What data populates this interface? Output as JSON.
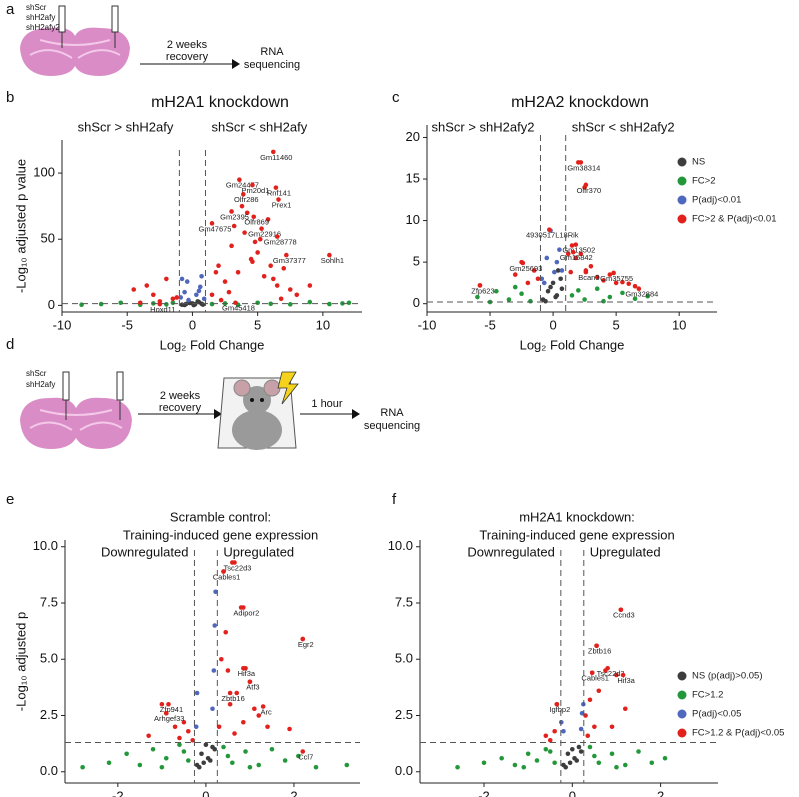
{
  "panel_labels": [
    "a",
    "b",
    "c",
    "d",
    "e",
    "f"
  ],
  "schematic_a": {
    "groups": [
      "shScr",
      "shH2afy",
      "shH2afy2"
    ],
    "step1": [
      "2 weeks",
      "recovery"
    ],
    "end": [
      "RNA",
      "sequencing"
    ]
  },
  "schematic_d": {
    "groups": [
      "shScr",
      "shH2afy"
    ],
    "step1": [
      "2 weeks",
      "recovery"
    ],
    "step2": "1 hour",
    "end": [
      "RNA",
      "sequencing"
    ]
  },
  "chart_data": [
    {
      "type": "scatter",
      "title": "mH2A1 knockdown",
      "left_label": "shScr > shH2afy",
      "right_label": "shScr < shH2afy",
      "xlabel": "Log₂ Fold Change",
      "ylabel": "-Log₁₀ adjusted p value",
      "xlim": [
        -10,
        13
      ],
      "ylim": [
        -5,
        125
      ],
      "xticks": [
        -10,
        -5,
        0,
        5,
        10
      ],
      "yticks": [
        0,
        50,
        100
      ],
      "vlines": [
        -1,
        1
      ],
      "hline": 1.3,
      "series": [
        {
          "color": "#3d3d3d",
          "x": [
            -0.8,
            -0.5,
            -0.3,
            0,
            0.2,
            0.5,
            0.7,
            -0.6,
            0.4,
            0.1,
            -0.2,
            0.8
          ],
          "values": [
            0.5,
            1,
            2,
            1.5,
            0.8,
            2.5,
            1.2,
            0.3,
            3,
            0.2,
            1.8,
            0.6
          ]
        },
        {
          "color": "#23983a",
          "x": [
            -7,
            -5.5,
            -4,
            -3,
            -2,
            -1.5,
            1.5,
            2.5,
            3.5,
            5,
            6,
            7.5,
            9,
            10.5,
            11.5,
            -8.5,
            12
          ],
          "values": [
            1,
            2,
            0.5,
            1.5,
            0.8,
            2,
            1,
            1.5,
            0.5,
            2,
            1.2,
            0.8,
            2.5,
            1,
            1.5,
            0.5,
            2
          ]
        },
        {
          "color": "#4f67bd",
          "x": [
            -0.9,
            -0.6,
            -0.4,
            0.3,
            0.6,
            0.9,
            -0.8,
            0.7,
            0.5,
            -0.3
          ],
          "values": [
            6,
            10,
            18,
            8,
            14,
            5,
            20,
            22,
            11,
            4
          ]
        },
        {
          "color": "#e3211c",
          "x": [
            -4.5,
            -3.5,
            -3,
            -2,
            -1.5,
            -2.5,
            -4,
            1.5,
            2,
            2.5,
            3,
            3.5,
            4,
            4.5,
            5,
            5.5,
            6,
            6.5,
            7,
            7.5,
            8,
            3.2,
            4.2,
            5.2,
            6.2,
            3.8,
            4.8,
            2.8,
            5.8,
            1.8,
            6.8,
            9,
            -1.2,
            2.2,
            4.6
          ],
          "values": [
            12,
            15,
            8,
            20,
            5,
            3,
            2,
            8,
            30,
            18,
            45,
            25,
            55,
            35,
            40,
            22,
            30,
            15,
            28,
            12,
            8,
            60,
            70,
            50,
            20,
            75,
            48,
            10,
            65,
            25,
            5,
            15,
            6,
            4,
            33
          ]
        }
      ],
      "annotations": [
        {
          "text": "Gm11460",
          "x": 6.2,
          "y": 116
        },
        {
          "text": "Gm24477",
          "x": 3.6,
          "y": 95
        },
        {
          "text": "Pm20d1",
          "x": 4.6,
          "y": 91
        },
        {
          "text": "Rnf141",
          "x": 6.4,
          "y": 89
        },
        {
          "text": "Olfr286",
          "x": 3.9,
          "y": 84
        },
        {
          "text": "Prex1",
          "x": 6.6,
          "y": 80
        },
        {
          "text": "Gm2395",
          "x": 3,
          "y": 71
        },
        {
          "text": "Olfr869",
          "x": 4.7,
          "y": 67
        },
        {
          "text": "Gm47675",
          "x": 1.5,
          "y": 62
        },
        {
          "text": "Gm22916",
          "x": 5.3,
          "y": 58
        },
        {
          "text": "Gm28778",
          "x": 6.5,
          "y": 52
        },
        {
          "text": "Gm37377",
          "x": 7.2,
          "y": 38
        },
        {
          "text": "Sohlh1",
          "x": 10.5,
          "y": 38
        },
        {
          "text": "Gm45418",
          "x": 3.3,
          "y": 2
        },
        {
          "text": "Hoxd11",
          "x": -2.5,
          "y": 1
        }
      ]
    },
    {
      "type": "scatter",
      "title": "mH2A2 knockdown",
      "left_label": "shScr > shH2afy2",
      "right_label": "shScr < shH2afy2",
      "xlabel": "Log₂ Fold Change",
      "xlim": [
        -10,
        13
      ],
      "ylim": [
        -1,
        21.5
      ],
      "xticks": [
        -10,
        -5,
        0,
        5,
        10
      ],
      "yticks": [
        0,
        5,
        10,
        15,
        20
      ],
      "vlines": [
        -1,
        1
      ],
      "hline": 0.2,
      "legend": "right",
      "series": [
        {
          "name": "NS",
          "color": "#3d3d3d",
          "x": [
            -0.8,
            -0.4,
            0,
            0.3,
            0.6,
            -0.6,
            0.2,
            -0.2,
            0.7,
            0.4
          ],
          "values": [
            0.5,
            1.5,
            2.5,
            1,
            3,
            0.3,
            0.8,
            2,
            1.8,
            4
          ]
        },
        {
          "name": "FC>2",
          "color": "#23983a",
          "x": [
            -6,
            -4.5,
            -3.5,
            -2.5,
            -1.8,
            1.5,
            2.5,
            3.5,
            4.5,
            5.5,
            6.5,
            7.5,
            -3,
            2,
            4,
            -5
          ],
          "values": [
            0.8,
            1.5,
            0.5,
            1.2,
            0.3,
            1,
            0.5,
            1.8,
            0.8,
            1.3,
            0.6,
            0.9,
            2,
            1.6,
            0.3,
            0.2
          ]
        },
        {
          "name": "P(adj)<0.01",
          "color": "#4f67bd",
          "x": [
            -0.9,
            -0.5,
            -0.2,
            0.3,
            0.7,
            0.5,
            -0.7,
            0.1
          ],
          "values": [
            3,
            5.5,
            8.8,
            5,
            4,
            6.5,
            2.5,
            3.8
          ]
        },
        {
          "name": "FC>2 & P(adj)<0.01",
          "color": "#e3211c",
          "x": [
            -5.8,
            -3,
            -2.5,
            -2,
            -1.5,
            -1.2,
            1.2,
            1.5,
            1.8,
            2,
            2.5,
            3,
            3.5,
            4,
            4.5,
            5,
            5.5,
            6,
            6.5,
            2.2,
            2.6,
            1.4
          ],
          "values": [
            2.2,
            3.5,
            5,
            2.5,
            4,
            3,
            6,
            7,
            5.5,
            17,
            14,
            4.5,
            3.2,
            2.8,
            3.5,
            2.5,
            2.6,
            2.4,
            2.1,
            6,
            4,
            3.8
          ]
        }
      ],
      "annotations": [
        {
          "text": "Gm38314",
          "x": 2.2,
          "y": 17
        },
        {
          "text": "Olfr370",
          "x": 2.6,
          "y": 14.3
        },
        {
          "text": "4930517L18Rik",
          "x": -0.3,
          "y": 8.9
        },
        {
          "text": "Gm13502",
          "x": 1.8,
          "y": 7.1
        },
        {
          "text": "Gm15842",
          "x": 1.6,
          "y": 6.2
        },
        {
          "text": "Gm25693",
          "x": -2.4,
          "y": 4.9
        },
        {
          "text": "Bcan3",
          "x": 2.6,
          "y": 3.8
        },
        {
          "text": "Gm35755",
          "x": 4.8,
          "y": 3.7
        },
        {
          "text": "Zfp623",
          "x": -5.8,
          "y": 2.2
        },
        {
          "text": "Gm32884",
          "x": 6.8,
          "y": 1.8
        }
      ]
    },
    {
      "type": "scatter",
      "title": "Scramble control:",
      "subtitle": "Training-induced gene expression",
      "left_label": "Downregulated",
      "right_label": "Upregulated",
      "xlabel": "Log₂ Fold Change",
      "ylabel": "-Log₁₀ adjusted p",
      "xlim": [
        -3.2,
        3.5
      ],
      "ylim": [
        -0.5,
        10.3
      ],
      "xticks": [
        -2,
        0,
        2
      ],
      "yticks": [
        {
          "value": 0,
          "label": "0.0"
        },
        2.5,
        {
          "value": 5,
          "label": "5.0"
        },
        7.5,
        {
          "value": 10,
          "label": "10.0"
        }
      ],
      "vlines": [
        -0.26,
        0.26
      ],
      "hline": 1.3,
      "series": [
        {
          "color": "#3d3d3d",
          "x": [
            -0.2,
            -0.1,
            0,
            0.1,
            0.2,
            -0.15,
            0.05,
            0.15,
            -0.05
          ],
          "values": [
            0.3,
            0.8,
            1.2,
            0.5,
            1,
            0.2,
            0.6,
            1.1,
            0.4
          ]
        },
        {
          "color": "#23983a",
          "x": [
            -2.8,
            -2.2,
            -1.8,
            -1.5,
            -1.2,
            -0.9,
            -0.6,
            -0.4,
            0.4,
            0.6,
            0.9,
            1.2,
            1.5,
            1.8,
            2.1,
            2.5,
            3.2,
            -1.0,
            1.0,
            -0.5,
            0.5
          ],
          "values": [
            0.2,
            0.4,
            0.8,
            0.3,
            1.0,
            0.6,
            1.2,
            0.5,
            1.1,
            0.4,
            0.9,
            0.3,
            1.0,
            0.5,
            0.7,
            0.2,
            0.3,
            0.2,
            0.2,
            0.9,
            0.7
          ]
        },
        {
          "color": "#4f67bd",
          "x": [
            -0.22,
            -0.2,
            0.18,
            0.2,
            0.22,
            0.15
          ],
          "values": [
            2.0,
            3.5,
            4.5,
            6.5,
            8.0,
            2.8
          ]
        },
        {
          "color": "#e3211c",
          "x": [
            -1.3,
            -1.0,
            -0.9,
            -0.7,
            -0.6,
            -0.4,
            -0.3,
            0.3,
            0.4,
            0.5,
            0.6,
            0.7,
            0.8,
            0.9,
            1.0,
            1.1,
            1.2,
            1.4,
            2.2,
            0.35,
            0.45,
            0.55,
            0.65,
            0.85,
            1.9,
            -0.5
          ],
          "values": [
            1.6,
            3.0,
            2.6,
            2.0,
            1.5,
            1.8,
            1.4,
            2.0,
            8.9,
            4.5,
            9.3,
            3.5,
            7.3,
            4.6,
            4.0,
            2.8,
            2.5,
            2.0,
            5.9,
            5.0,
            6.2,
            3.0,
            1.7,
            2.2,
            1.9,
            2.2
          ]
        }
      ],
      "annotations": [
        {
          "text": "Tsc22d3",
          "x": 0.65,
          "y": 9.3
        },
        {
          "text": "Cables1",
          "x": 0.4,
          "y": 8.9
        },
        {
          "text": "Adipor2",
          "x": 0.85,
          "y": 7.3
        },
        {
          "text": "Egr2",
          "x": 2.2,
          "y": 5.9
        },
        {
          "text": "Hif3a",
          "x": 0.85,
          "y": 4.6
        },
        {
          "text": "Atf3",
          "x": 1.0,
          "y": 4.0
        },
        {
          "text": "Zbtb16",
          "x": 0.55,
          "y": 3.5
        },
        {
          "text": "Arc",
          "x": 1.3,
          "y": 2.9
        },
        {
          "text": "Zfp941",
          "x": -0.85,
          "y": 3.0
        },
        {
          "text": "Arhgef33",
          "x": -0.9,
          "y": 2.6
        },
        {
          "text": "Ccl7",
          "x": 2.2,
          "y": 0.9
        }
      ]
    },
    {
      "type": "scatter",
      "title": "mH2A1 knockdown:",
      "subtitle": "Training-induced gene expression",
      "left_label": "Downregulated",
      "right_label": "Upregulated",
      "xlabel": "Log₂ Fold Change",
      "xlim": [
        -3.45,
        3.3
      ],
      "ylim": [
        -0.5,
        10.3
      ],
      "xticks": [
        -2,
        0,
        2
      ],
      "yticks": [
        {
          "value": 0,
          "label": "0.0"
        },
        2.5,
        {
          "value": 5,
          "label": "5.0"
        },
        7.5,
        {
          "value": 10,
          "label": "10.0"
        }
      ],
      "vlines": [
        -0.26,
        0.26
      ],
      "hline": 1.3,
      "legend": "right",
      "series": [
        {
          "name": "NS (p(adj)>0.05)",
          "color": "#3d3d3d",
          "x": [
            -0.2,
            -0.1,
            0,
            0.1,
            0.2,
            -0.15,
            0.05,
            0.15,
            -0.05
          ],
          "values": [
            0.3,
            0.8,
            1.0,
            0.5,
            0.9,
            0.2,
            0.6,
            1.1,
            0.4
          ]
        },
        {
          "name": "FC>1.2",
          "color": "#23983a",
          "x": [
            -2.6,
            -2.0,
            -1.6,
            -1.3,
            -1.0,
            -0.8,
            -0.6,
            -0.4,
            0.4,
            0.6,
            0.9,
            1.2,
            1.5,
            1.8,
            2.1,
            -1.1,
            1.0,
            -0.5,
            0.5
          ],
          "values": [
            0.2,
            0.4,
            0.6,
            0.3,
            0.8,
            0.5,
            1.0,
            0.4,
            1.1,
            0.4,
            0.8,
            0.3,
            0.9,
            0.4,
            0.6,
            0.2,
            0.2,
            0.9,
            0.7
          ]
        },
        {
          "name": "P(adj)<0.05",
          "color": "#4f67bd",
          "x": [
            -0.25,
            0.2,
            0.22,
            0.25,
            -0.2
          ],
          "values": [
            2.2,
            1.9,
            2.6,
            3.0,
            1.8
          ]
        },
        {
          "name": "FC>1.2 & P(adj)<0.05",
          "color": "#e3211c",
          "x": [
            -0.6,
            -0.4,
            -0.35,
            0.3,
            0.35,
            0.45,
            0.55,
            0.6,
            0.75,
            1.1,
            1.2,
            0.9,
            1.0,
            0.5,
            0.4,
            -0.5
          ],
          "values": [
            1.6,
            1.8,
            3.0,
            2.5,
            1.6,
            4.4,
            5.6,
            3.6,
            4.5,
            7.2,
            2.8,
            2.0,
            4.3,
            2.0,
            3.2,
            1.4
          ]
        }
      ],
      "annotations": [
        {
          "text": "Ccnd3",
          "x": 1.1,
          "y": 7.2
        },
        {
          "text": "Zbtb16",
          "x": 0.55,
          "y": 5.6
        },
        {
          "text": "Tsc22d3",
          "x": 0.8,
          "y": 4.6
        },
        {
          "text": "Cables1",
          "x": 0.45,
          "y": 4.4
        },
        {
          "text": "Hif3a",
          "x": 1.15,
          "y": 4.3
        },
        {
          "text": "Igfbp2",
          "x": -0.35,
          "y": 3.0
        }
      ]
    }
  ]
}
